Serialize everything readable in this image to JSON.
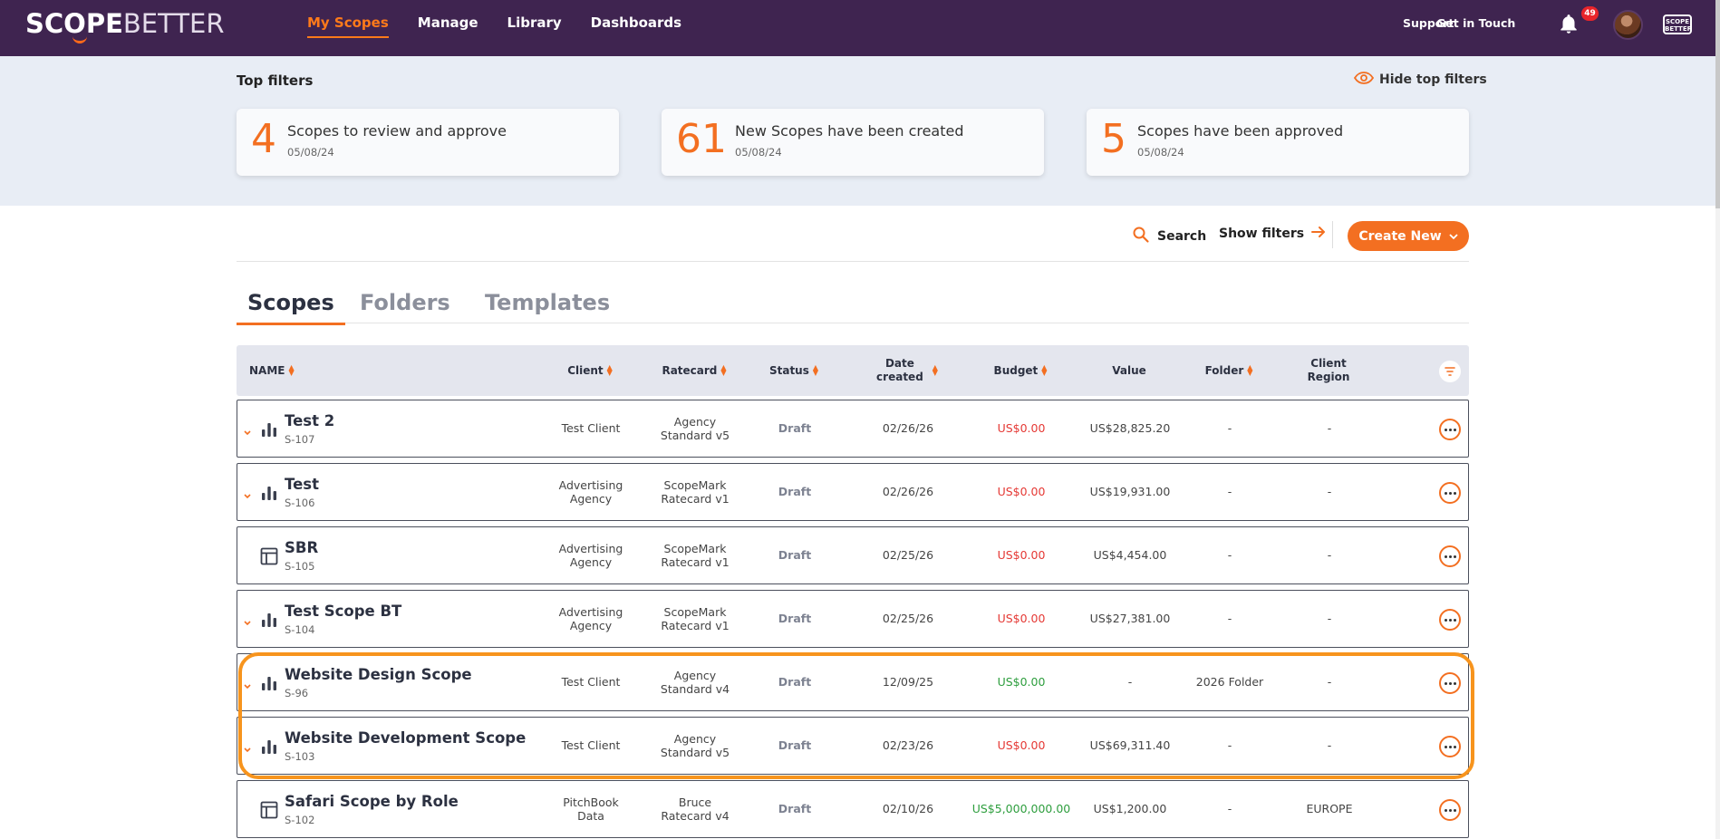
{
  "brand": {
    "logo_bold": "SCOPE",
    "logo_light": "BETTER",
    "mini_logo": "SCOPE BETTER",
    "accent": "#f36f21",
    "nav_bg": "#3f2450"
  },
  "nav": {
    "items": [
      {
        "label": "My Scopes",
        "active": true
      },
      {
        "label": "Manage"
      },
      {
        "label": "Library"
      },
      {
        "label": "Dashboards"
      }
    ],
    "support": "Support",
    "get_in_touch": "Get in Touch",
    "notifications_count": "49"
  },
  "top_filters": {
    "title": "Top filters",
    "hide_label": "Hide top filters",
    "cards": [
      {
        "count": "4",
        "label": "Scopes to review and approve",
        "date": "05/08/24"
      },
      {
        "count": "61",
        "label": "New Scopes have been created",
        "date": "05/08/24"
      },
      {
        "count": "5",
        "label": "Scopes have been approved",
        "date": "05/08/24"
      }
    ]
  },
  "actions": {
    "search": "Search",
    "show_filters": "Show filters",
    "create_new": "Create New"
  },
  "tabs": [
    {
      "label": "Scopes",
      "active": true
    },
    {
      "label": "Folders"
    },
    {
      "label": "Templates"
    }
  ],
  "table": {
    "headers": {
      "name": "NAME",
      "client": "Client",
      "ratecard": "Ratecard",
      "status": "Status",
      "date_created_1": "Date",
      "date_created_2": "created",
      "budget": "Budget",
      "value": "Value",
      "folder": "Folder",
      "region_1": "Client",
      "region_2": "Region"
    },
    "rows": [
      {
        "name": "Test 2",
        "code": "S-107",
        "icon": "bar-chart-icon",
        "expandable": true,
        "client1": "Test Client",
        "client2": "",
        "rate1": "Agency",
        "rate2": "Standard v5",
        "status": "Draft",
        "date": "02/26/26",
        "budget": "US$0.00",
        "budget_color": "red",
        "value": "US$28,825.20",
        "folder": "-",
        "region": "-"
      },
      {
        "name": "Test",
        "code": "S-106",
        "icon": "bar-chart-icon",
        "expandable": true,
        "client1": "Advertising",
        "client2": "Agency",
        "rate1": "ScopeMark",
        "rate2": "Ratecard v1",
        "status": "Draft",
        "date": "02/26/26",
        "budget": "US$0.00",
        "budget_color": "red",
        "value": "US$19,931.00",
        "folder": "-",
        "region": "-"
      },
      {
        "name": "SBR",
        "code": "S-105",
        "icon": "table-icon",
        "expandable": false,
        "client1": "Advertising",
        "client2": "Agency",
        "rate1": "ScopeMark",
        "rate2": "Ratecard v1",
        "status": "Draft",
        "date": "02/25/26",
        "budget": "US$0.00",
        "budget_color": "red",
        "value": "US$4,454.00",
        "folder": "-",
        "region": "-"
      },
      {
        "name": "Test Scope BT",
        "code": "S-104",
        "icon": "bar-chart-icon",
        "expandable": true,
        "client1": "Advertising",
        "client2": "Agency",
        "rate1": "ScopeMark",
        "rate2": "Ratecard v1",
        "status": "Draft",
        "date": "02/25/26",
        "budget": "US$0.00",
        "budget_color": "red",
        "value": "US$27,381.00",
        "folder": "-",
        "region": "-"
      },
      {
        "name": "Website Design Scope",
        "code": "S-96",
        "icon": "bar-chart-icon",
        "expandable": true,
        "client1": "Test Client",
        "client2": "",
        "rate1": "Agency",
        "rate2": "Standard v4",
        "status": "Draft",
        "date": "12/09/25",
        "budget": "US$0.00",
        "budget_color": "green",
        "value": "-",
        "folder": "2026 Folder",
        "region": "-"
      },
      {
        "name": "Website Development Scope",
        "code": "S-103",
        "icon": "bar-chart-icon",
        "expandable": true,
        "client1": "Test Client",
        "client2": "",
        "rate1": "Agency",
        "rate2": "Standard v5",
        "status": "Draft",
        "date": "02/23/26",
        "budget": "US$0.00",
        "budget_color": "red",
        "value": "US$69,311.40",
        "folder": "-",
        "region": "-"
      },
      {
        "name": "Safari Scope by Role",
        "code": "S-102",
        "icon": "table-icon",
        "expandable": false,
        "client1": "PitchBook",
        "client2": "Data",
        "rate1": "Bruce",
        "rate2": "Ratecard v4",
        "status": "Draft",
        "date": "02/10/26",
        "budget": "US$5,000,000.00",
        "budget_color": "green",
        "value": "US$1,200.00",
        "folder": "-",
        "region": "EUROPE"
      }
    ]
  }
}
